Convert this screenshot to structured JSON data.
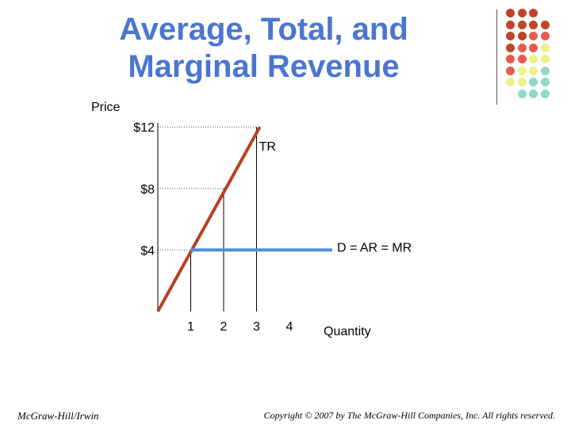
{
  "slide": {
    "title_line1": "Average, Total, and",
    "title_line2": "Marginal Revenue",
    "footer_left": "McGraw-Hill/Irwin",
    "footer_right": "Copyright © 2007 by The McGraw-Hill Companies, Inc. All rights reserved."
  },
  "colors": {
    "title": "#4a76d0",
    "tr_line": "#b5411f",
    "demand_line": "#4a8fe0",
    "dot_palette": [
      "#c0442a",
      "#e85a4f",
      "#f0f08a",
      "#8fd9c9"
    ]
  },
  "decoration_dots": [
    [
      "#c0442a",
      "#c0442a",
      "#c0442a",
      null
    ],
    [
      "#c0442a",
      "#c0442a",
      "#c0442a",
      "#c0442a"
    ],
    [
      "#c0442a",
      "#c0442a",
      "#e85a4f",
      "#e85a4f"
    ],
    [
      "#c0442a",
      "#e85a4f",
      "#e85a4f",
      "#f0f08a"
    ],
    [
      "#e85a4f",
      "#e85a4f",
      "#f0f08a",
      "#f0f08a"
    ],
    [
      "#e85a4f",
      "#f0f08a",
      "#f0f08a",
      "#8fd9c9"
    ],
    [
      "#f0f08a",
      "#f0f08a",
      "#8fd9c9",
      "#8fd9c9"
    ],
    [
      null,
      "#8fd9c9",
      "#8fd9c9",
      "#8fd9c9"
    ]
  ],
  "chart_data": {
    "type": "line",
    "ylabel": "Price",
    "xlabel": "Quantity",
    "x_ticks": [
      "1",
      "2",
      "3",
      "4"
    ],
    "y_ticks": [
      {
        "value": 12,
        "label": "$12"
      },
      {
        "value": 8,
        "label": "$8"
      },
      {
        "value": 4,
        "label": "$4"
      }
    ],
    "xlim": [
      0,
      5
    ],
    "ylim": [
      0,
      12
    ],
    "series": [
      {
        "name": "TR",
        "x": [
          0,
          3.1
        ],
        "y": [
          0,
          12
        ]
      },
      {
        "name": "D = AR = MR",
        "x": [
          1,
          5.3
        ],
        "y": [
          4,
          4
        ]
      }
    ],
    "guides": [
      {
        "x": 1,
        "y": 4
      },
      {
        "x": 2,
        "y": 8
      },
      {
        "x": 3,
        "y": 12
      }
    ]
  }
}
